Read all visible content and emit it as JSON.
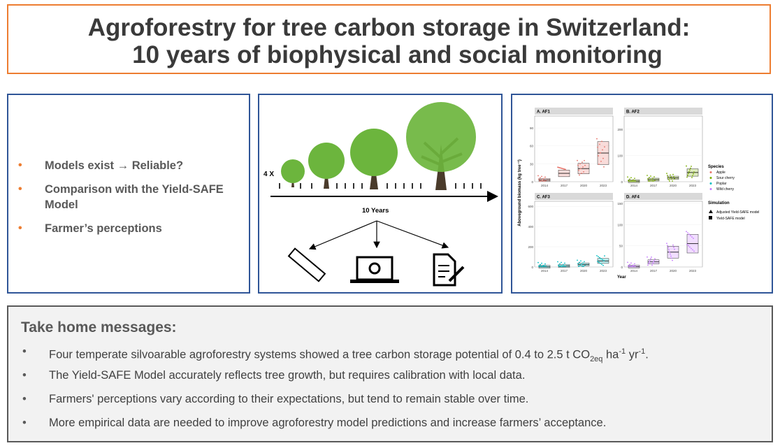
{
  "title": {
    "line1": "Agroforestry for tree carbon storage in Switzerland:",
    "line2": "10 years of biophysical and social monitoring"
  },
  "left_panel": {
    "bullets": [
      {
        "text": "Models exist → Reliable?"
      },
      {
        "text": "Comparison with the Yield-SAFE Model"
      },
      {
        "text": "Farmer’s perceptions"
      }
    ]
  },
  "diagram": {
    "multiplier_label": "4 X",
    "years_label": "10 Years",
    "outputs": [
      "ruler-icon",
      "laptop-gears-icon",
      "document-pen-icon"
    ]
  },
  "chart": {
    "ylabel": "Aboveground biomass (kg tree⁻¹)",
    "xlabel": "Year",
    "panels": [
      {
        "title": "A. AF1",
        "ticks": [
          "0",
          "30",
          "60",
          "90"
        ]
      },
      {
        "title": "B. AF2",
        "ticks": [
          "0",
          "100",
          "200"
        ]
      },
      {
        "title": "C. AF3",
        "ticks": [
          "0",
          "200",
          "400",
          "600"
        ]
      },
      {
        "title": "D. AF4",
        "ticks": [
          "0",
          "50",
          "100",
          "150"
        ]
      }
    ],
    "years": [
      "2014",
      "2017",
      "2020",
      "2023"
    ],
    "legend": {
      "species_title": "Species",
      "species": [
        {
          "name": "Apple",
          "color": "#e8756b"
        },
        {
          "name": "Sour cherry",
          "color": "#7cae00"
        },
        {
          "name": "Poplar",
          "color": "#00bfc4"
        },
        {
          "name": "Wild cherry",
          "color": "#c77cff"
        }
      ],
      "simulation_title": "Simulation",
      "simulation": [
        {
          "name": "Adjusted Yield-SAFE model",
          "symbol": "triangle"
        },
        {
          "name": "Yield-SAFE model",
          "symbol": "square"
        }
      ]
    }
  },
  "chart_data": [
    {
      "type": "box",
      "title": "A. AF1",
      "categories": [
        "2014",
        "2017",
        "2020",
        "2023"
      ],
      "medians": [
        3,
        14,
        22,
        48
      ],
      "ylim": [
        0,
        110
      ],
      "series": "Apple"
    },
    {
      "type": "box",
      "title": "B. AF2",
      "categories": [
        "2014",
        "2017",
        "2020",
        "2023"
      ],
      "medians": [
        2,
        8,
        15,
        35
      ],
      "ylim": [
        0,
        250
      ],
      "series": "Sour cherry"
    },
    {
      "type": "box",
      "title": "C. AF3",
      "categories": [
        "2014",
        "2017",
        "2020",
        "2023"
      ],
      "medians": [
        2,
        10,
        25,
        60
      ],
      "ylim": [
        0,
        650
      ],
      "series": "Poplar"
    },
    {
      "type": "box",
      "title": "D. AF4",
      "categories": [
        "2014",
        "2017",
        "2020",
        "2023"
      ],
      "medians": [
        1,
        12,
        35,
        55
      ],
      "ylim": [
        0,
        155
      ],
      "series": "Wild cherry"
    }
  ],
  "take_home": {
    "title": "Take home messages:",
    "msg1": {
      "pre": "Four temperate silvoarable agroforestry systems showed a tree carbon storage potential of 0.4 to 2.5 t CO",
      "sub": "2eq",
      "mid1": " ha",
      "sup1": "-1",
      "mid2": " yr",
      "sup2": "-1",
      "post": "."
    },
    "msg2": "The Yield-SAFE Model accurately reflects tree growth, but requires calibration with local data.",
    "msg3": "Farmers' perceptions vary according to their expectations, but tend to remain stable over time.",
    "msg4": "More empirical data are needed to improve agroforestry model predictions and increase farmers’ acceptance."
  }
}
